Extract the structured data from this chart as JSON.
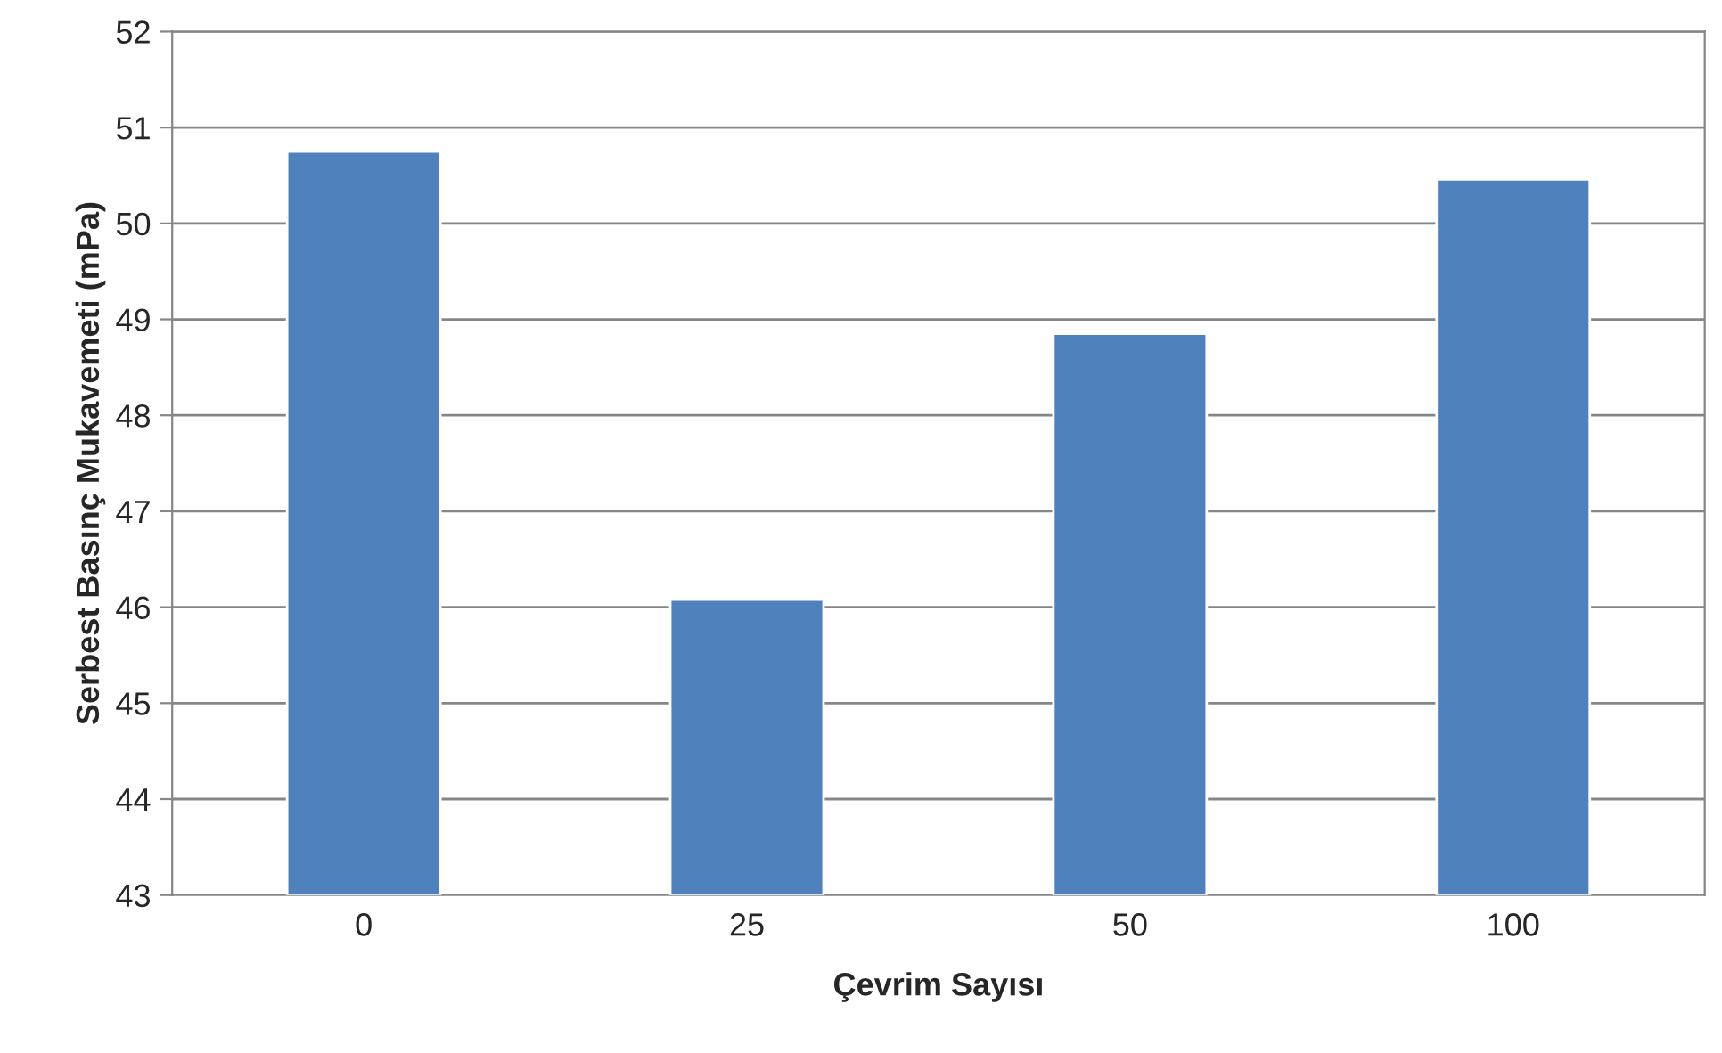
{
  "chart_data": {
    "type": "bar",
    "xlabel": "Çevrim Sayısı",
    "ylabel": "Serbest Basınç Mukavemeti (mPa)",
    "categories": [
      "0",
      "25",
      "50",
      "100"
    ],
    "values": [
      50.75,
      46.08,
      48.85,
      50.46
    ],
    "color": "#4f81bd",
    "ylim": [
      43,
      52
    ],
    "yticks": [
      43,
      44,
      45,
      46,
      47,
      48,
      49,
      50,
      51,
      52
    ],
    "grid": "y",
    "legend": false
  }
}
